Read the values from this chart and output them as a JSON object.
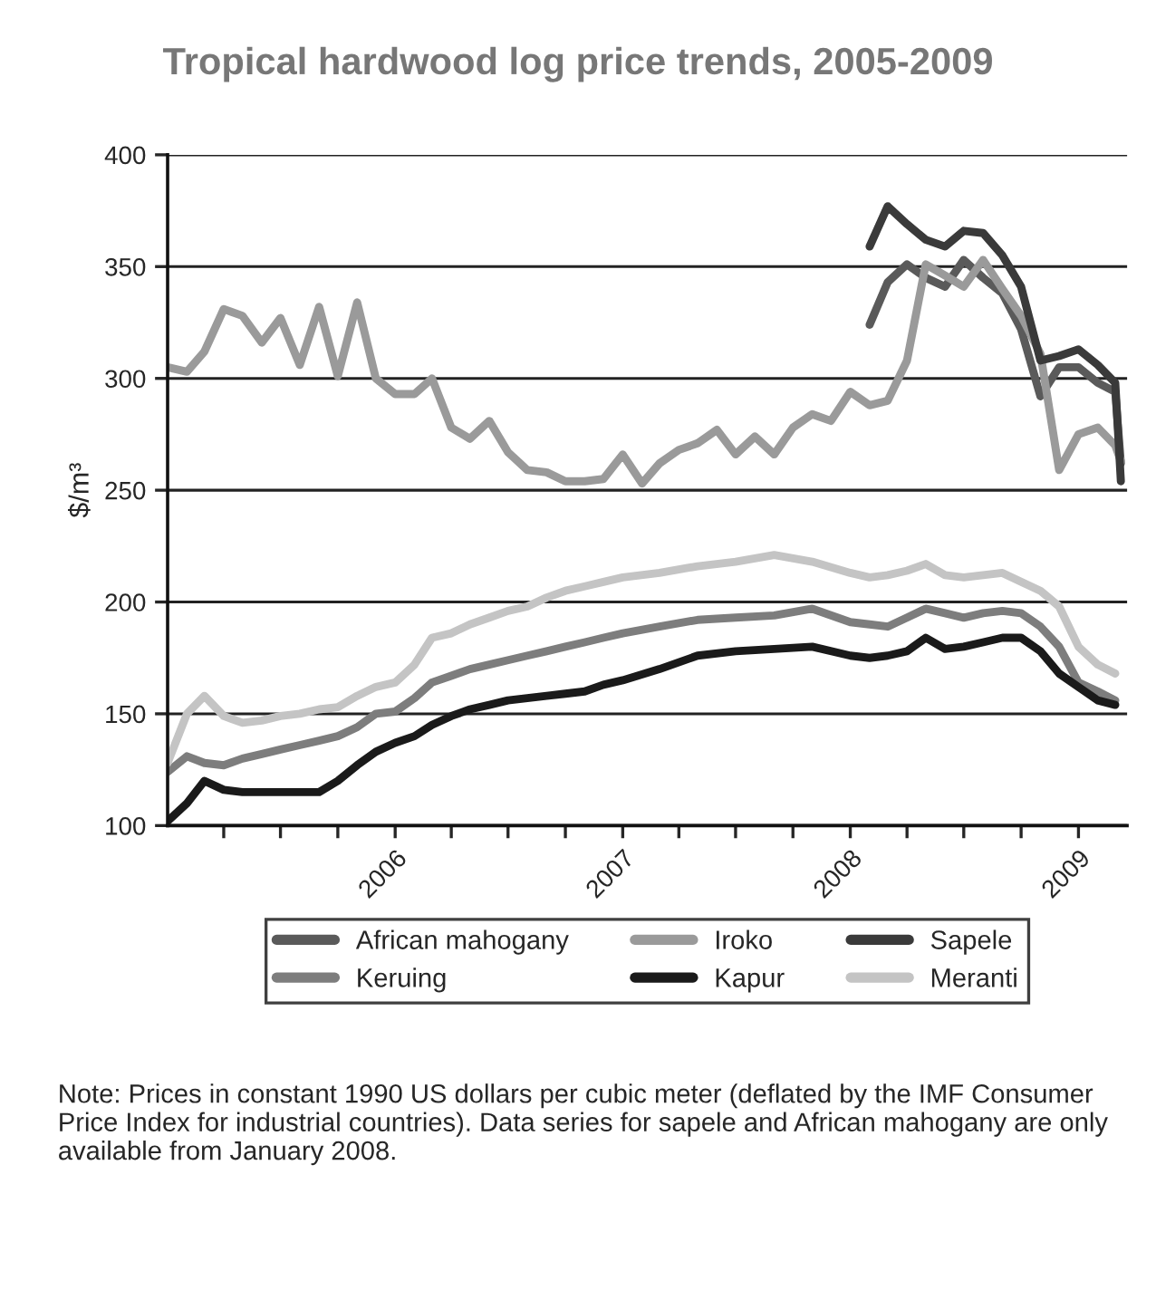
{
  "chart_data": {
    "type": "line",
    "title": "Tropical hardwood log price trends, 2005-2009",
    "ylabel": "$/m³",
    "xlim": [
      "2005-01",
      "2009-03-20"
    ],
    "ylim": [
      100,
      400
    ],
    "yticks": [
      100,
      150,
      200,
      250,
      300,
      350,
      400
    ],
    "xticks": [
      {
        "value": "2005-04",
        "label": null
      },
      {
        "value": "2005-07",
        "label": null
      },
      {
        "value": "2005-10",
        "label": null
      },
      {
        "value": "2006-01",
        "label": "2006"
      },
      {
        "value": "2006-04",
        "label": null
      },
      {
        "value": "2006-07",
        "label": null
      },
      {
        "value": "2006-10",
        "label": null
      },
      {
        "value": "2007-01",
        "label": "2007"
      },
      {
        "value": "2007-04",
        "label": null
      },
      {
        "value": "2007-07",
        "label": null
      },
      {
        "value": "2007-10",
        "label": null
      },
      {
        "value": "2008-01",
        "label": "2008"
      },
      {
        "value": "2008-04",
        "label": null
      },
      {
        "value": "2008-07",
        "label": null
      },
      {
        "value": "2008-10",
        "label": null
      },
      {
        "value": "2009-01",
        "label": "2009"
      }
    ],
    "grid": "y",
    "legend": "bottom",
    "line_style": "solid",
    "marker": "none",
    "series": [
      {
        "name": "African mahogany",
        "color": "#5a5a5a",
        "x": [
          "2008-02",
          "2008-03",
          "2008-04",
          "2008-05",
          "2008-06",
          "2008-07",
          "2008-08",
          "2008-09",
          "2008-10",
          "2008-11",
          "2008-12",
          "2009-01",
          "2009-02",
          "2009-03",
          "2009-03-10"
        ],
        "values": [
          324,
          343,
          351,
          345,
          341,
          353,
          345,
          338,
          322,
          292,
          305,
          305,
          298,
          294,
          262
        ]
      },
      {
        "name": "Iroko",
        "color": "#9a9a9a",
        "x": [
          "2005-01",
          "2005-02",
          "2005-03",
          "2005-04",
          "2005-05",
          "2005-06",
          "2005-07",
          "2005-08",
          "2005-09",
          "2005-10",
          "2005-11",
          "2005-12",
          "2006-01",
          "2006-02",
          "2006-03",
          "2006-04",
          "2006-05",
          "2006-06",
          "2006-07",
          "2006-08",
          "2006-09",
          "2006-10",
          "2006-11",
          "2006-12",
          "2007-01",
          "2007-02",
          "2007-03",
          "2007-04",
          "2007-05",
          "2007-06",
          "2007-07",
          "2007-08",
          "2007-09",
          "2007-10",
          "2007-11",
          "2007-12",
          "2008-01",
          "2008-02",
          "2008-03",
          "2008-04",
          "2008-05",
          "2008-06",
          "2008-07",
          "2008-08",
          "2008-09",
          "2008-10",
          "2008-11",
          "2008-12",
          "2009-01",
          "2009-02",
          "2009-03",
          "2009-03-10"
        ],
        "values": [
          305,
          303,
          312,
          331,
          328,
          316,
          327,
          306,
          332,
          301,
          334,
          300,
          293,
          293,
          300,
          278,
          273,
          281,
          267,
          259,
          258,
          254,
          254,
          255,
          266,
          253,
          262,
          268,
          271,
          277,
          266,
          274,
          266,
          278,
          284,
          281,
          294,
          288,
          290,
          308,
          351,
          346,
          341,
          353,
          340,
          328,
          311,
          259,
          275,
          278,
          270,
          263
        ]
      },
      {
        "name": "Sapele",
        "color": "#3a3a3a",
        "x": [
          "2008-02",
          "2008-03",
          "2008-04",
          "2008-05",
          "2008-06",
          "2008-07",
          "2008-08",
          "2008-09",
          "2008-10",
          "2008-11",
          "2008-12",
          "2009-01",
          "2009-02",
          "2009-03",
          "2009-03-10"
        ],
        "values": [
          359,
          377,
          369,
          362,
          359,
          366,
          365,
          355,
          341,
          308,
          310,
          313,
          306,
          298,
          254
        ]
      },
      {
        "name": "Keruing",
        "color": "#7d7d7d",
        "x": [
          "2005-01",
          "2005-02",
          "2005-03",
          "2005-04",
          "2005-05",
          "2005-06",
          "2005-07",
          "2005-08",
          "2005-09",
          "2005-10",
          "2005-11",
          "2005-12",
          "2006-01",
          "2006-02",
          "2006-03",
          "2006-04",
          "2006-05",
          "2006-06",
          "2006-07",
          "2006-08",
          "2006-09",
          "2006-10",
          "2006-11",
          "2006-12",
          "2007-01",
          "2007-03",
          "2007-05",
          "2007-07",
          "2007-09",
          "2007-11",
          "2008-01",
          "2008-02",
          "2008-03",
          "2008-04",
          "2008-05",
          "2008-06",
          "2008-07",
          "2008-08",
          "2008-09",
          "2008-10",
          "2008-11",
          "2008-12",
          "2009-01",
          "2009-02",
          "2009-03"
        ],
        "values": [
          124,
          131,
          128,
          127,
          130,
          132,
          134,
          136,
          138,
          140,
          144,
          150,
          151,
          157,
          164,
          167,
          170,
          172,
          174,
          176,
          178,
          180,
          182,
          184,
          186,
          189,
          192,
          193,
          194,
          197,
          191,
          190,
          189,
          193,
          197,
          195,
          193,
          195,
          196,
          195,
          189,
          180,
          164,
          160,
          156
        ]
      },
      {
        "name": "Kapur",
        "color": "#1a1a1a",
        "x": [
          "2005-01",
          "2005-02",
          "2005-03",
          "2005-04",
          "2005-05",
          "2005-06",
          "2005-07",
          "2005-08",
          "2005-09",
          "2005-10",
          "2005-11",
          "2005-12",
          "2006-01",
          "2006-02",
          "2006-03",
          "2006-04",
          "2006-05",
          "2006-06",
          "2006-07",
          "2006-08",
          "2006-09",
          "2006-10",
          "2006-11",
          "2006-12",
          "2007-01",
          "2007-03",
          "2007-05",
          "2007-07",
          "2007-09",
          "2007-11",
          "2008-01",
          "2008-02",
          "2008-03",
          "2008-04",
          "2008-05",
          "2008-06",
          "2008-07",
          "2008-08",
          "2008-09",
          "2008-10",
          "2008-11",
          "2008-12",
          "2009-01",
          "2009-02",
          "2009-03"
        ],
        "values": [
          102,
          110,
          120,
          116,
          115,
          115,
          115,
          115,
          115,
          120,
          127,
          133,
          137,
          140,
          145,
          149,
          152,
          154,
          156,
          157,
          158,
          159,
          160,
          163,
          165,
          170,
          176,
          178,
          179,
          180,
          176,
          175,
          176,
          178,
          184,
          179,
          180,
          182,
          184,
          184,
          178,
          168,
          162,
          156,
          154
        ]
      },
      {
        "name": "Meranti",
        "color": "#c4c4c4",
        "x": [
          "2005-01",
          "2005-02",
          "2005-03",
          "2005-04",
          "2005-05",
          "2005-06",
          "2005-07",
          "2005-08",
          "2005-09",
          "2005-10",
          "2005-11",
          "2005-12",
          "2006-01",
          "2006-02",
          "2006-03",
          "2006-04",
          "2006-05",
          "2006-06",
          "2006-07",
          "2006-08",
          "2006-09",
          "2006-10",
          "2006-11",
          "2006-12",
          "2007-01",
          "2007-03",
          "2007-05",
          "2007-07",
          "2007-09",
          "2007-11",
          "2008-01",
          "2008-02",
          "2008-03",
          "2008-04",
          "2008-05",
          "2008-06",
          "2008-07",
          "2008-08",
          "2008-09",
          "2008-10",
          "2008-11",
          "2008-12",
          "2009-01",
          "2009-02",
          "2009-03"
        ],
        "values": [
          128,
          150,
          158,
          149,
          146,
          147,
          149,
          150,
          152,
          153,
          158,
          162,
          164,
          172,
          184,
          186,
          190,
          193,
          196,
          198,
          202,
          205,
          207,
          209,
          211,
          213,
          216,
          218,
          221,
          218,
          213,
          211,
          212,
          214,
          217,
          212,
          211,
          212,
          213,
          209,
          205,
          198,
          180,
          172,
          168
        ]
      }
    ],
    "annotations": [
      "Note: Prices in constant 1990 US dollars per cubic meter (deflated by the IMF Consumer Price Index for industrial countries). Data series for sapele and African mahogany are only available from January 2008."
    ]
  }
}
